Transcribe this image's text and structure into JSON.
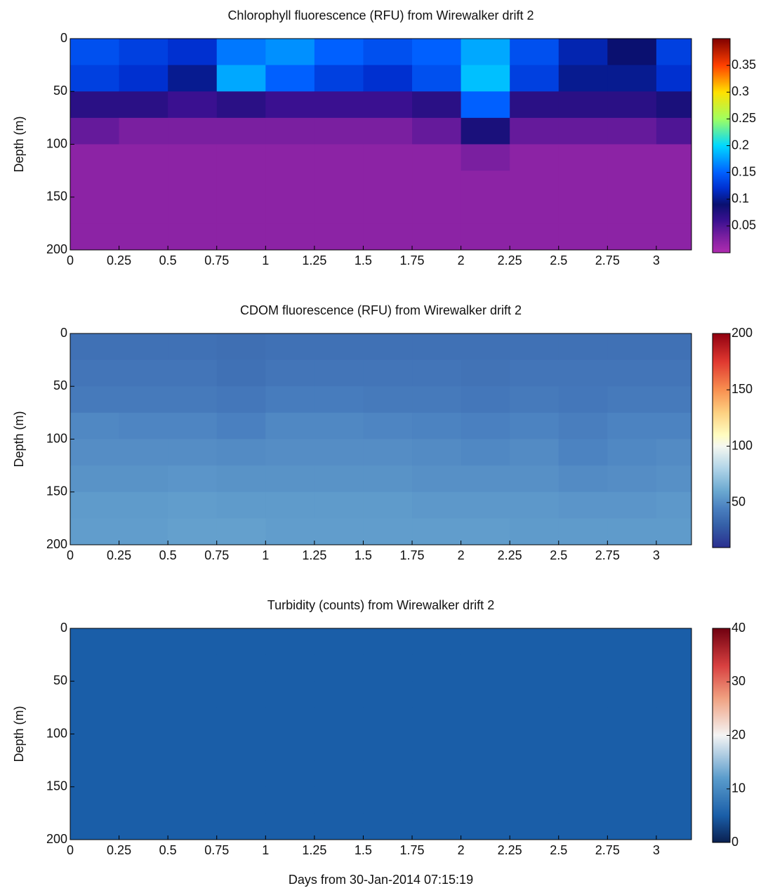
{
  "chart_data": [
    {
      "type": "heatmap",
      "title": "Chlorophyll fluorescence (RFU) from Wirewalker drift 2",
      "ylabel": "Depth (m)",
      "x_edges": [
        0,
        0.25,
        0.5,
        0.75,
        1,
        1.25,
        1.5,
        1.75,
        2,
        2.25,
        2.5,
        2.75,
        3,
        3.18
      ],
      "y_edges": [
        0,
        25,
        50,
        75,
        100,
        125,
        150,
        175,
        200
      ],
      "z": [
        [
          0.14,
          0.13,
          0.12,
          0.16,
          0.17,
          0.15,
          0.14,
          0.15,
          0.18,
          0.14,
          0.11,
          0.09,
          0.13
        ],
        [
          0.13,
          0.12,
          0.1,
          0.18,
          0.15,
          0.13,
          0.12,
          0.14,
          0.19,
          0.13,
          0.1,
          0.1,
          0.12
        ],
        [
          0.07,
          0.07,
          0.06,
          0.07,
          0.06,
          0.06,
          0.06,
          0.07,
          0.15,
          0.07,
          0.07,
          0.07,
          0.08
        ],
        [
          0.04,
          0.03,
          0.03,
          0.03,
          0.03,
          0.03,
          0.03,
          0.04,
          0.08,
          0.04,
          0.04,
          0.04,
          0.05
        ],
        [
          0.02,
          0.02,
          0.02,
          0.02,
          0.02,
          0.02,
          0.02,
          0.02,
          0.03,
          0.02,
          0.02,
          0.02,
          0.02
        ],
        [
          0.02,
          0.02,
          0.02,
          0.02,
          0.02,
          0.02,
          0.02,
          0.02,
          0.02,
          0.02,
          0.02,
          0.02,
          0.02
        ],
        [
          0.02,
          0.02,
          0.02,
          0.02,
          0.02,
          0.02,
          0.02,
          0.02,
          0.02,
          0.02,
          0.02,
          0.02,
          0.02
        ],
        [
          0.02,
          0.02,
          0.02,
          0.02,
          0.02,
          0.02,
          0.02,
          0.02,
          0.02,
          0.02,
          0.02,
          0.02,
          0.02
        ]
      ],
      "xlim": [
        0,
        3.18
      ],
      "xticks": [
        0,
        0.25,
        0.5,
        0.75,
        1,
        1.25,
        1.5,
        1.75,
        2,
        2.25,
        2.5,
        2.75,
        3
      ],
      "ylim": [
        0,
        200
      ],
      "y_inverted": true,
      "yticks": [
        0,
        50,
        100,
        150,
        200
      ],
      "clim": [
        0,
        0.4
      ],
      "cticks": [
        0.05,
        0.1,
        0.15,
        0.2,
        0.25,
        0.3,
        0.35
      ],
      "colormap": [
        [
          0,
          "#b02cb0"
        ],
        [
          0.03,
          "#7a1fa0"
        ],
        [
          0.06,
          "#3a1090"
        ],
        [
          0.09,
          "#0a1070"
        ],
        [
          0.12,
          "#0030d0"
        ],
        [
          0.15,
          "#0060ff"
        ],
        [
          0.2,
          "#00d8ff"
        ],
        [
          0.25,
          "#a0ff60"
        ],
        [
          0.3,
          "#ffe000"
        ],
        [
          0.35,
          "#ff4000"
        ],
        [
          0.4,
          "#800000"
        ]
      ]
    },
    {
      "type": "heatmap",
      "title": "CDOM fluorescence (RFU) from Wirewalker drift 2",
      "ylabel": "Depth (m)",
      "x_edges": [
        0,
        0.25,
        0.5,
        0.75,
        1,
        1.25,
        1.5,
        1.75,
        2,
        2.25,
        2.5,
        2.75,
        3,
        3.18
      ],
      "y_edges": [
        0,
        25,
        50,
        75,
        100,
        125,
        150,
        175,
        200
      ],
      "z": [
        [
          38,
          38,
          38,
          37,
          38,
          38,
          38,
          38,
          38,
          38,
          38,
          38,
          38
        ],
        [
          40,
          40,
          40,
          38,
          40,
          40,
          40,
          40,
          39,
          40,
          40,
          40,
          40
        ],
        [
          42,
          42,
          42,
          41,
          43,
          43,
          42,
          42,
          41,
          42,
          41,
          42,
          42
        ],
        [
          48,
          47,
          47,
          45,
          48,
          48,
          47,
          46,
          45,
          46,
          44,
          46,
          46
        ],
        [
          50,
          50,
          50,
          49,
          50,
          50,
          50,
          49,
          48,
          49,
          46,
          48,
          49
        ],
        [
          52,
          52,
          53,
          52,
          52,
          52,
          52,
          51,
          51,
          51,
          49,
          50,
          51
        ],
        [
          55,
          55,
          56,
          55,
          55,
          55,
          55,
          54,
          54,
          54,
          53,
          53,
          54
        ],
        [
          56,
          56,
          57,
          57,
          56,
          56,
          56,
          56,
          56,
          55,
          55,
          55,
          55
        ]
      ],
      "xlim": [
        0,
        3.18
      ],
      "xticks": [
        0,
        0.25,
        0.5,
        0.75,
        1,
        1.25,
        1.5,
        1.75,
        2,
        2.25,
        2.5,
        2.75,
        3
      ],
      "ylim": [
        0,
        200
      ],
      "y_inverted": true,
      "yticks": [
        0,
        50,
        100,
        150,
        200
      ],
      "clim": [
        10,
        200
      ],
      "cticks": [
        50,
        100,
        150,
        200
      ],
      "colormap": [
        [
          10,
          "#2a2f8f"
        ],
        [
          30,
          "#3560a8"
        ],
        [
          45,
          "#4a80c0"
        ],
        [
          60,
          "#6aa8d0"
        ],
        [
          80,
          "#b0d4e8"
        ],
        [
          100,
          "#f5f8f0"
        ],
        [
          110,
          "#fffcc0"
        ],
        [
          130,
          "#fdd080"
        ],
        [
          150,
          "#f89050"
        ],
        [
          175,
          "#e03830"
        ],
        [
          200,
          "#900010"
        ]
      ]
    },
    {
      "type": "heatmap",
      "title": "Turbidity (counts) from Wirewalker drift 2",
      "ylabel": "Depth (m)",
      "xlabel": "Days from 30-Jan-2014 07:15:19",
      "x_edges": [
        0,
        0.25,
        0.5,
        0.75,
        1,
        1.25,
        1.5,
        1.75,
        2,
        2.25,
        2.5,
        2.75,
        3,
        3.18
      ],
      "y_edges": [
        0,
        25,
        50,
        75,
        100,
        125,
        150,
        175,
        200
      ],
      "z": [
        [
          5,
          5,
          5,
          5,
          5,
          5,
          5,
          5,
          5,
          5,
          5,
          5,
          5
        ],
        [
          5,
          5,
          5,
          5,
          5,
          5,
          5,
          5,
          5,
          5,
          5,
          5,
          5
        ],
        [
          5,
          5,
          5,
          5,
          5,
          5,
          5,
          5,
          5,
          5,
          5,
          5,
          5
        ],
        [
          5,
          5,
          5,
          5,
          5,
          5,
          5,
          5,
          5,
          5,
          5,
          5,
          5
        ],
        [
          5,
          5,
          5,
          5,
          5,
          5,
          5,
          5,
          5,
          5,
          5,
          5,
          5
        ],
        [
          5,
          5,
          5,
          5,
          5,
          5,
          5,
          5,
          5,
          5,
          5,
          5,
          5
        ],
        [
          5,
          5,
          5,
          5,
          5,
          5,
          5,
          5,
          5,
          5,
          5,
          5,
          5
        ],
        [
          5,
          5,
          5,
          5,
          5,
          5,
          5,
          5,
          5,
          5,
          5,
          5,
          5
        ]
      ],
      "xlim": [
        0,
        3.18
      ],
      "xticks": [
        0,
        0.25,
        0.5,
        0.75,
        1,
        1.25,
        1.5,
        1.75,
        2,
        2.25,
        2.5,
        2.75,
        3
      ],
      "ylim": [
        0,
        200
      ],
      "y_inverted": true,
      "yticks": [
        0,
        50,
        100,
        150,
        200
      ],
      "clim": [
        0,
        40
      ],
      "cticks": [
        0,
        10,
        20,
        30,
        40
      ],
      "colormap": [
        [
          0,
          "#0a2050"
        ],
        [
          5,
          "#1a5ea8"
        ],
        [
          12,
          "#5a9ccc"
        ],
        [
          20,
          "#f4f4f4"
        ],
        [
          27,
          "#f0a080"
        ],
        [
          33,
          "#d84040"
        ],
        [
          40,
          "#700010"
        ]
      ]
    }
  ]
}
